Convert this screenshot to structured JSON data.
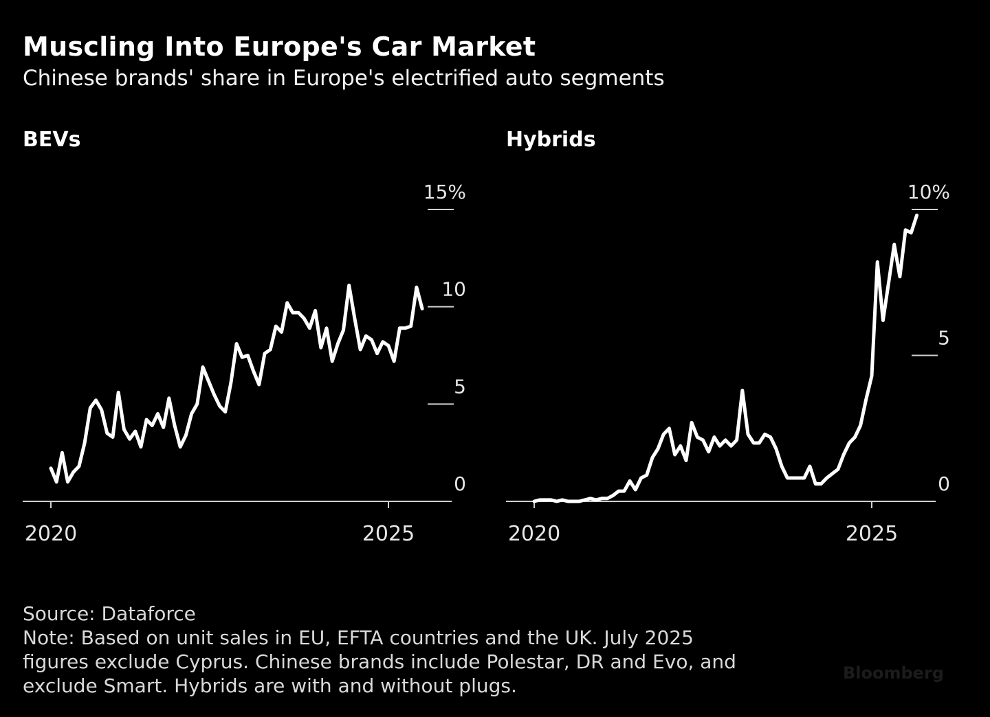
{
  "title": "Muscling Into Europe's Car Market",
  "subtitle": "Chinese brands' share in Europe's electrified auto segments",
  "chart_data": [
    {
      "type": "line",
      "title": "BEVs",
      "x_start_year": 2020,
      "x_tick_labels": [
        "2020",
        "2025"
      ],
      "y_tick_labels": [
        "0",
        "5",
        "10",
        "15%"
      ],
      "y_ticks": [
        0,
        5,
        10,
        15
      ],
      "ylim": [
        0,
        15
      ],
      "series": [
        {
          "name": "BEVs",
          "values": [
            1.7,
            1.0,
            2.5,
            1.0,
            1.5,
            1.8,
            3.0,
            4.8,
            5.2,
            4.7,
            3.5,
            3.3,
            5.6,
            3.7,
            3.2,
            3.6,
            2.8,
            4.2,
            3.9,
            4.5,
            3.8,
            5.3,
            3.9,
            2.8,
            3.4,
            4.5,
            5.0,
            6.9,
            6.2,
            5.5,
            4.9,
            4.6,
            6.1,
            8.1,
            7.4,
            7.5,
            6.7,
            6.0,
            7.6,
            7.8,
            9.0,
            8.7,
            10.2,
            9.7,
            9.7,
            9.4,
            8.9,
            9.8,
            7.9,
            8.9,
            7.2,
            8.1,
            8.8,
            11.1,
            9.4,
            7.8,
            8.5,
            8.3,
            7.6,
            8.2,
            8.0,
            7.2,
            8.9,
            8.9,
            9.0,
            11.0,
            9.9
          ]
        }
      ],
      "annotations": {
        "x_label_2025": "2025"
      }
    },
    {
      "type": "line",
      "title": "Hybrids",
      "x_start_year": 2020,
      "x_tick_labels": [
        "2020",
        "2025"
      ],
      "y_tick_labels": [
        "0",
        "5",
        "10%"
      ],
      "y_ticks": [
        0,
        5,
        10
      ],
      "ylim": [
        0,
        10
      ],
      "series": [
        {
          "name": "Hybrids",
          "values": [
            0.0,
            0.05,
            0.05,
            0.05,
            0.0,
            0.05,
            0.0,
            0.0,
            0.0,
            0.05,
            0.1,
            0.05,
            0.1,
            0.1,
            0.2,
            0.35,
            0.35,
            0.7,
            0.4,
            0.8,
            0.9,
            1.5,
            1.8,
            2.3,
            2.5,
            1.6,
            1.9,
            1.4,
            2.7,
            2.2,
            2.1,
            1.7,
            2.2,
            1.9,
            2.1,
            1.9,
            2.1,
            3.8,
            2.3,
            2.0,
            2.0,
            2.3,
            2.2,
            1.8,
            1.2,
            0.8,
            0.8,
            0.8,
            0.8,
            1.2,
            0.6,
            0.6,
            0.8,
            0.95,
            1.1,
            1.6,
            2.0,
            2.2,
            2.6,
            3.5,
            4.3,
            8.2,
            6.2,
            7.5,
            8.8,
            7.7,
            9.3,
            9.2,
            9.8
          ]
        }
      ]
    }
  ],
  "footer": {
    "source": "Source: Dataforce",
    "note_line1": "Note: Based on unit sales in EU, EFTA countries and the UK. July 2025",
    "note_line2": "figures exclude Cyprus. Chinese brands include Polestar, DR and Evo, and",
    "note_line3": "exclude Smart. Hybrids are with and without plugs."
  },
  "watermark": "Bloomberg"
}
